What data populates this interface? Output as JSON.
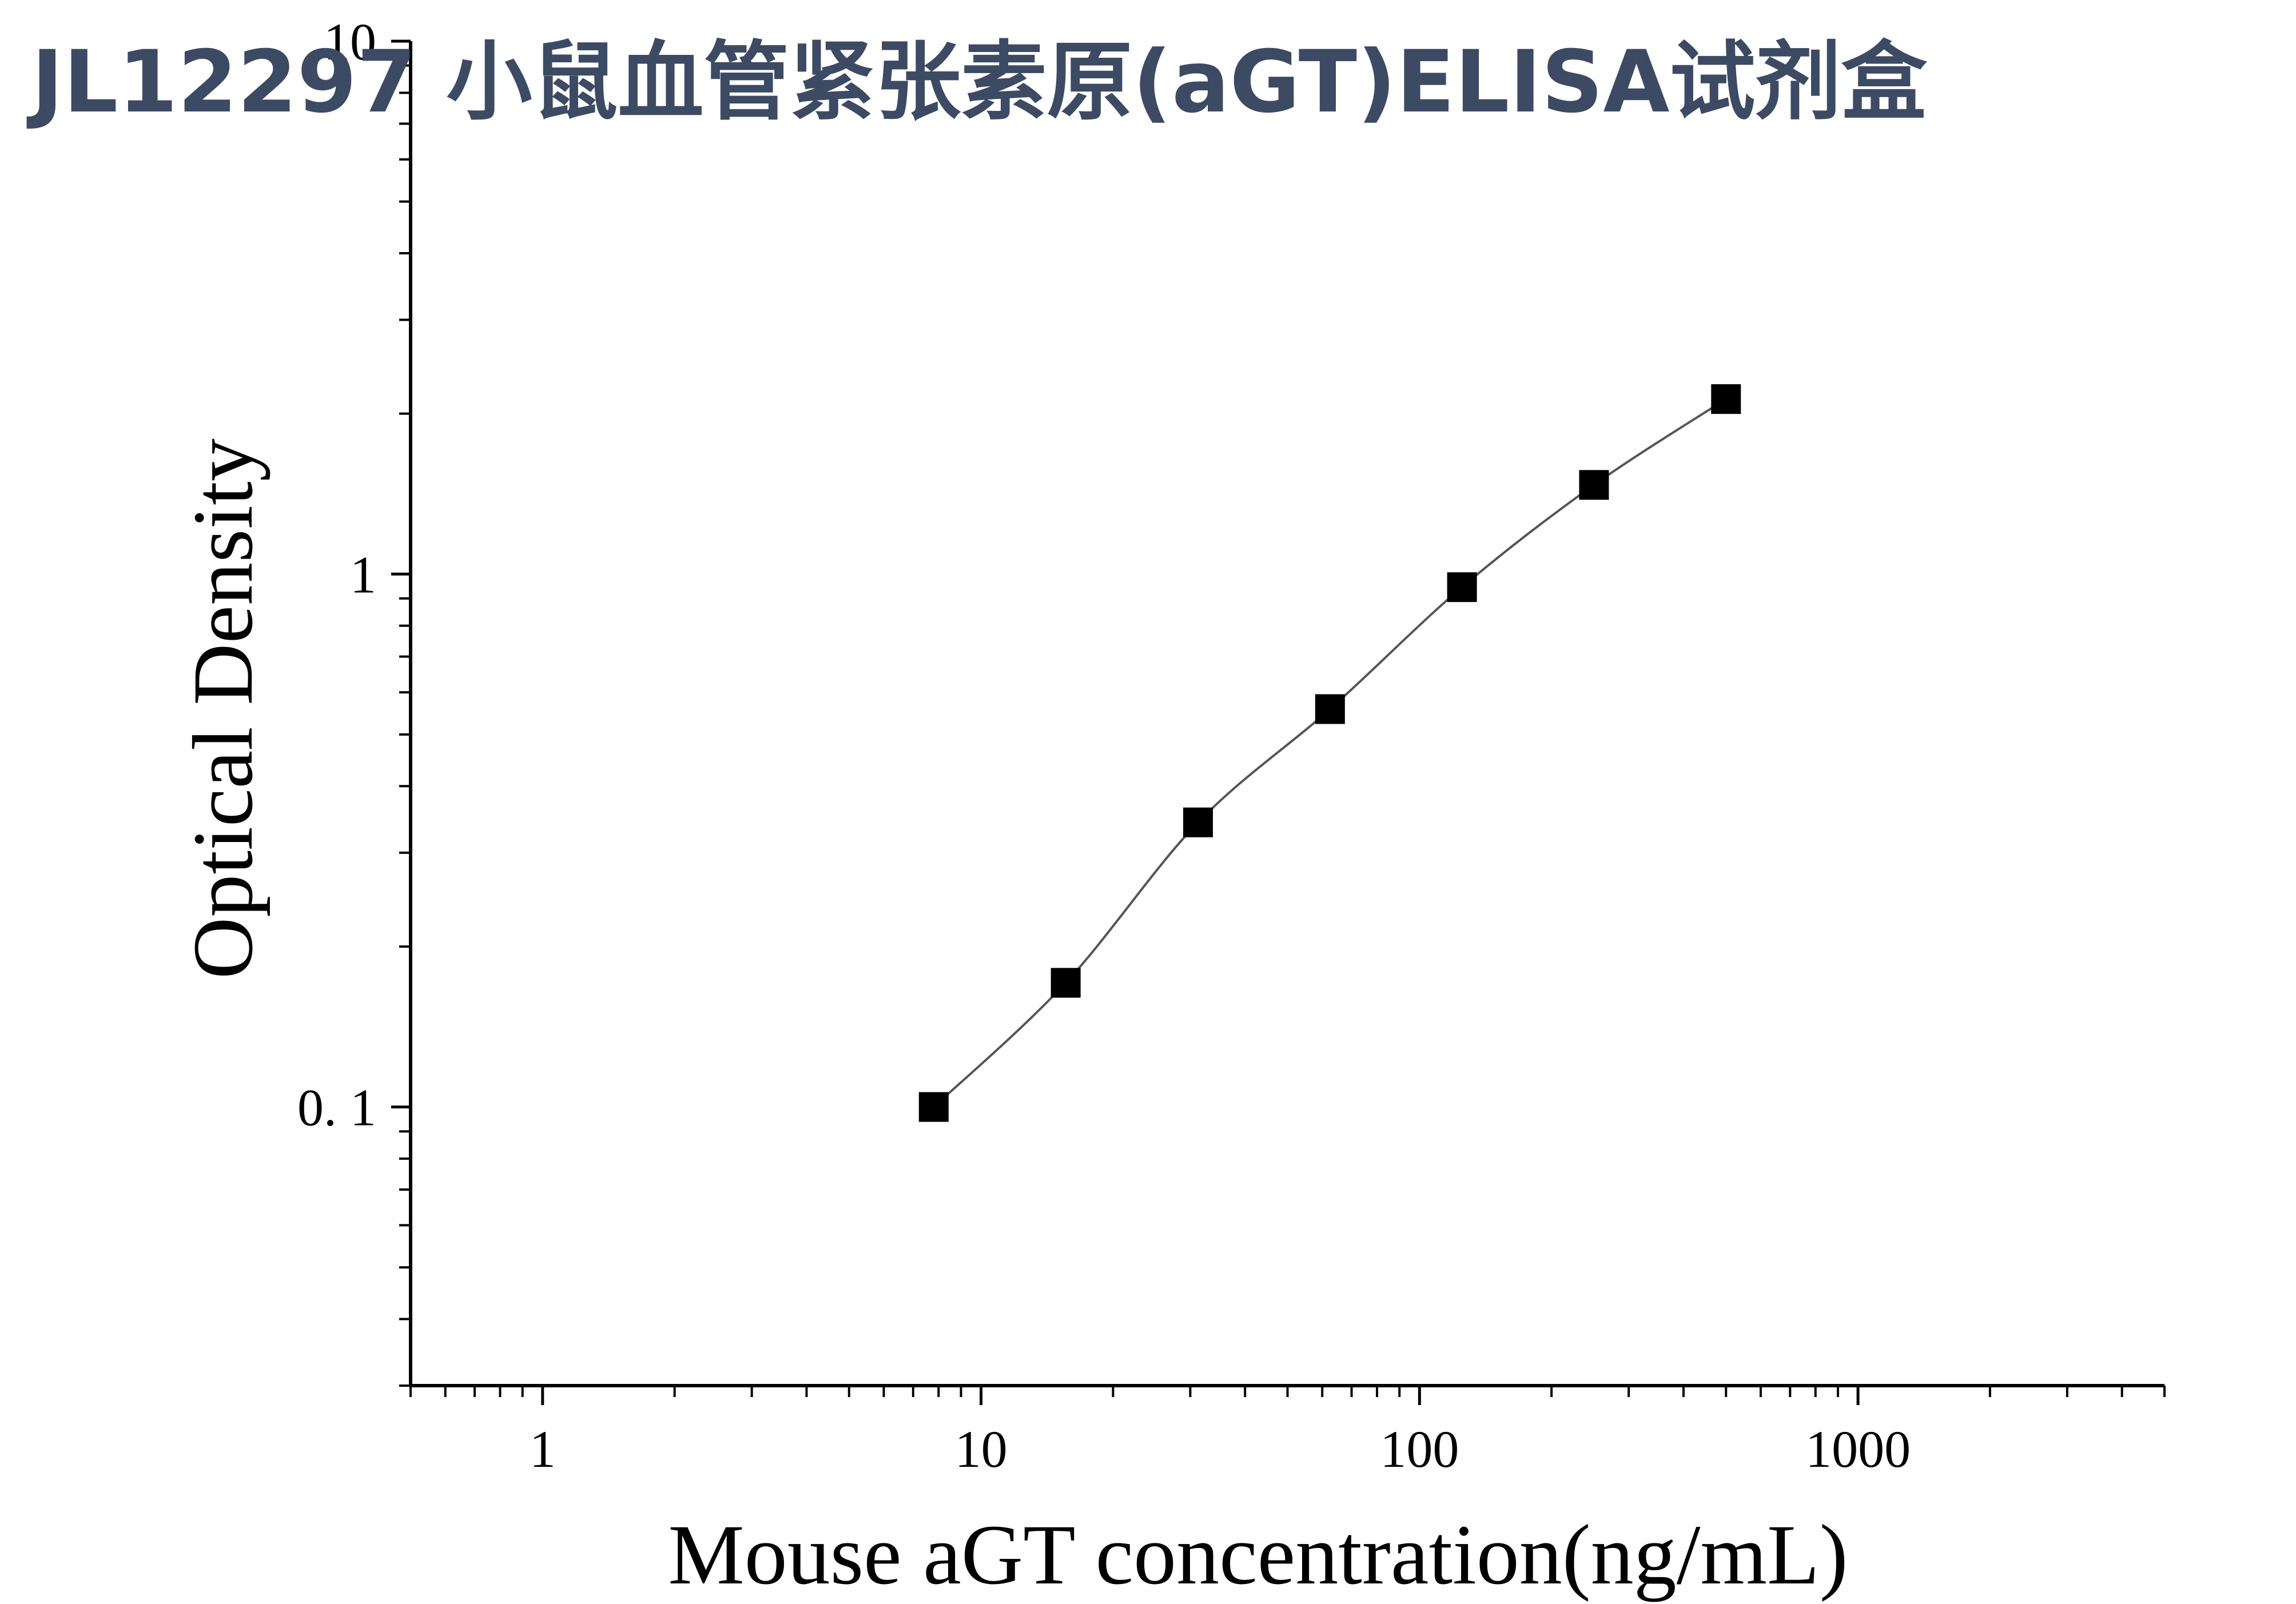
{
  "title": "JL12297 小鼠血管紧张素原(aGT)ELISA试剂盒",
  "colors": {
    "title": "#3d4a63",
    "axis": "#000000",
    "curve": "#555555",
    "marker": "#000000",
    "background": "#ffffff"
  },
  "chart_data": {
    "type": "scatter",
    "title": "JL12297 小鼠血管紧张素原(aGT)ELISA试剂盒",
    "xlabel": "Mouse aGT concentration(ng/mL)",
    "ylabel": "Optical Density",
    "x_scale": "log",
    "y_scale": "log",
    "xlim": [
      0.5,
      5000
    ],
    "ylim": [
      0.03,
      10
    ],
    "x_tick_labels": [
      {
        "value": 1,
        "label": "1"
      },
      {
        "value": 10,
        "label": "10"
      },
      {
        "value": 100,
        "label": "100"
      },
      {
        "value": 1000,
        "label": "1000"
      }
    ],
    "y_tick_labels": [
      {
        "value": 0.1,
        "label": "0. 1"
      },
      {
        "value": 1,
        "label": "1"
      },
      {
        "value": 10,
        "label": "10"
      }
    ],
    "grid": false,
    "legend": "none",
    "marker": "square",
    "fitted_curve": true,
    "series": [
      {
        "x": [
          7.8,
          15.6,
          31.25,
          62.5,
          125,
          250,
          500
        ],
        "y": [
          0.1,
          0.171,
          0.342,
          0.558,
          0.945,
          1.47,
          2.13
        ]
      }
    ]
  }
}
